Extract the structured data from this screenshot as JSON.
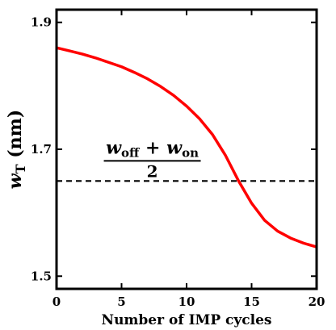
{
  "chart_data": {
    "type": "line",
    "xlabel": "Number of IMP cycles",
    "ylabel_main": "w",
    "ylabel_sub": "T",
    "ylabel_unit": " (nm)",
    "xlim": [
      0,
      20
    ],
    "ylim": [
      1.48,
      1.92
    ],
    "xticks": [
      0,
      5,
      10,
      15,
      20
    ],
    "xtick_labels": [
      "0",
      "5",
      "10",
      "15",
      "20"
    ],
    "yticks": [
      1.5,
      1.7,
      1.9
    ],
    "ytick_labels": [
      "1.5",
      "1.7",
      "1.9"
    ],
    "grid": false,
    "series": [
      {
        "color": "#ff0000",
        "style": "solid",
        "x": [
          0,
          1,
          2,
          3,
          4,
          5,
          6,
          7,
          8,
          9,
          10,
          11,
          12,
          13,
          14,
          15,
          16,
          17,
          18,
          19,
          20
        ],
        "y": [
          1.86,
          1.855,
          1.85,
          1.844,
          1.837,
          1.83,
          1.821,
          1.811,
          1.799,
          1.785,
          1.768,
          1.748,
          1.723,
          1.69,
          1.65,
          1.615,
          1.588,
          1.571,
          1.56,
          1.552,
          1.546
        ]
      },
      {
        "color": "#000000",
        "style": "dashed",
        "x": [
          0,
          20
        ],
        "y": [
          1.65,
          1.65
        ]
      }
    ],
    "annotation": {
      "num_w1": "w",
      "num_sub1": "off",
      "num_plus": " + ",
      "num_w2": "w",
      "num_sub2": "on",
      "denominator": "2",
      "x": 5.5,
      "y": 1.65
    }
  }
}
